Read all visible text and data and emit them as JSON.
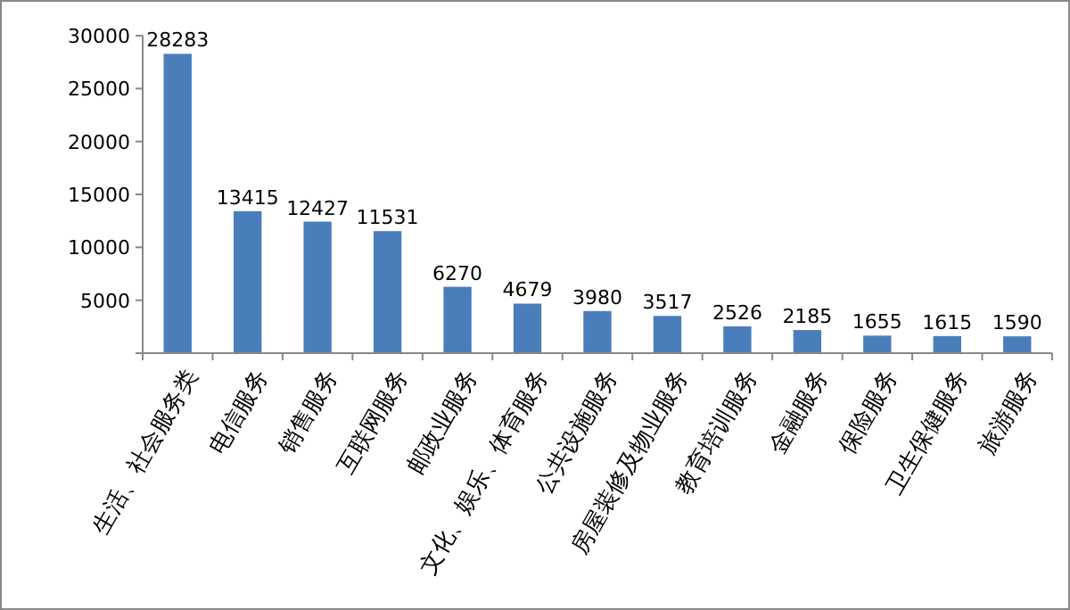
{
  "chart_data": {
    "type": "bar",
    "categories": [
      "生活、社会服务类",
      "电信服务",
      "销售服务",
      "互联网服务",
      "邮政业服务",
      "文化、娱乐、体育服务",
      "公共设施服务",
      "房屋装修及物业服务",
      "教育培训服务",
      "金融服务",
      "保险服务",
      "卫生保健服务",
      "旅游服务"
    ],
    "values": [
      28283,
      13415,
      12427,
      11531,
      6270,
      4679,
      3980,
      3517,
      2526,
      2185,
      1655,
      1615,
      1590
    ],
    "color": "#4a7ebb",
    "ylim": [
      0,
      30000
    ],
    "yticks": [
      {
        "value": 0,
        "label": null
      },
      5000,
      10000,
      15000,
      20000,
      25000,
      30000
    ],
    "data_labels": true
  }
}
